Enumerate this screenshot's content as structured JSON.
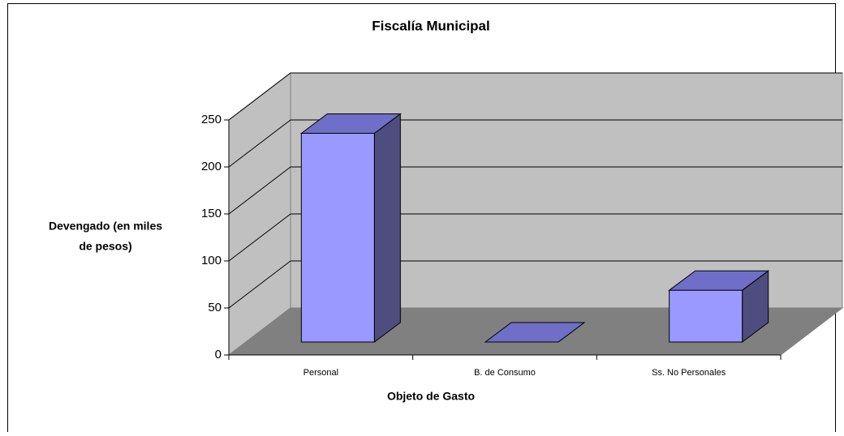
{
  "chart_data": {
    "type": "bar3d",
    "title": "Fiscalía Municipal",
    "y_label": [
      "Devengado (en miles",
      "de pesos)"
    ],
    "x_label": "Objeto de Gasto",
    "categories": [
      "Personal",
      "B. de Consumo",
      "Ss. No Personales"
    ],
    "values": [
      222,
      0,
      55
    ],
    "color": "#9999ff",
    "ylim": [
      0,
      250
    ],
    "yticks": [
      0,
      50,
      100,
      150,
      200,
      250
    ],
    "grid": true
  }
}
